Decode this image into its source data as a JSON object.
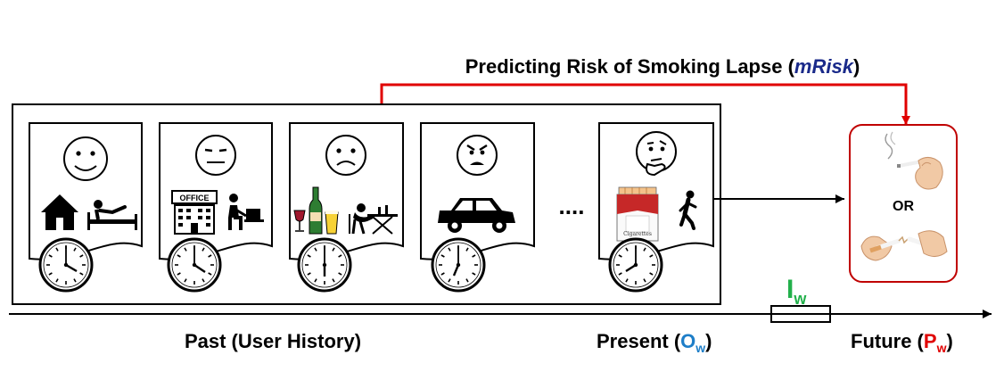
{
  "title": {
    "prefix": "Predicting Risk of Smoking Lapse (",
    "emphasis": "mRisk",
    "suffix": ")"
  },
  "colors": {
    "title_emphasis": "#1a2a8a",
    "risk_arrow": "#e00000",
    "future_box_border": "#c00000",
    "present_accent": "#1e7ec8",
    "future_accent": "#e00000",
    "interval_accent": "#22b04b"
  },
  "timeline": {
    "past_label": "Past (User History)",
    "present": {
      "prefix": "Present (",
      "symbol": "O",
      "subscript": "w",
      "suffix": ")"
    },
    "future": {
      "prefix": "Future (",
      "symbol": "P",
      "subscript": "w",
      "suffix": ")"
    },
    "interval": {
      "symbol": "I",
      "subscript": "w"
    }
  },
  "history_cards": [
    {
      "emotion": "happy-face-icon",
      "context": [
        "home-icon",
        "resting-in-bed-icon"
      ]
    },
    {
      "emotion": "neutral-face-icon",
      "office_sign": "OFFICE",
      "context": [
        "office-building-icon",
        "working-at-laptop-icon"
      ]
    },
    {
      "emotion": "sad-face-icon",
      "context": [
        "wine-and-beer-icon",
        "drunk-at-table-icon"
      ]
    },
    {
      "emotion": "angry-face-icon",
      "context": [
        "car-icon"
      ]
    },
    {
      "emotion": "thinking-face-icon",
      "pack_label": "Cigarettes",
      "context": [
        "cigarette-pack-icon",
        "walking-person-icon"
      ]
    }
  ],
  "ellipsis": "....",
  "outcome": {
    "separator": "OR",
    "options": [
      "smoking-cigarette-icon",
      "broken-cigarette-icon"
    ]
  }
}
